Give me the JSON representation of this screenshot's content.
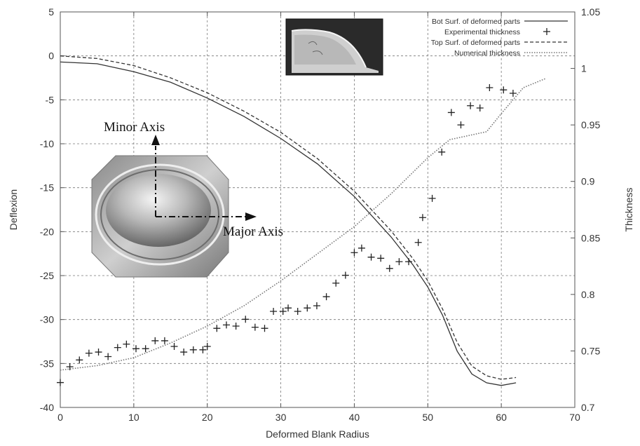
{
  "chart_data": {
    "type": "line",
    "xlabel": "Deformed Blank Radius",
    "ylabel": "Deflexion",
    "y2label": "Thickness",
    "xlim": [
      0,
      70
    ],
    "ylim": [
      -40,
      5
    ],
    "y2lim": [
      0.7,
      1.05
    ],
    "x_ticks": [
      "0",
      "10",
      "20",
      "30",
      "40",
      "50",
      "60",
      "70"
    ],
    "y_ticks": [
      "-40",
      "-35",
      "-30",
      "-25",
      "-20",
      "-15",
      "-10",
      "-5",
      "0",
      "5"
    ],
    "y2_ticks": [
      "0.7",
      "0.75",
      "0.8",
      "0.85",
      "0.9",
      "0.95",
      "1",
      "1.05"
    ],
    "grid": true,
    "legend_position": "top-right",
    "series": [
      {
        "name": "Bot Surf. of deformed parts",
        "axis": "left",
        "style": "solid",
        "color": "#333333",
        "x": [
          0,
          5,
          10,
          15,
          20,
          25,
          30,
          35,
          40,
          45,
          48,
          50,
          52,
          54,
          56,
          58,
          60,
          62
        ],
        "y": [
          -0.7,
          -0.9,
          -1.8,
          -3.0,
          -4.8,
          -6.9,
          -9.4,
          -12.3,
          -16.0,
          -20.6,
          -23.8,
          -26.3,
          -29.5,
          -33.6,
          -36.2,
          -37.2,
          -37.5,
          -37.2
        ]
      },
      {
        "name": "Experimental thickness",
        "axis": "right",
        "style": "marker",
        "marker": "+",
        "color": "#222222",
        "x": [
          0,
          1.3,
          2.6,
          3.9,
          5.2,
          6.5,
          7.8,
          9.0,
          10.3,
          11.6,
          12.9,
          14.2,
          15.5,
          16.8,
          18.1,
          19.4,
          20.0,
          21.3,
          22.6,
          23.9,
          25.2,
          26.5,
          27.8,
          29.0,
          30.3,
          31.0,
          32.3,
          33.6,
          34.9,
          36.2,
          37.5,
          38.8,
          40.0,
          41.0,
          42.3,
          43.6,
          44.8,
          46.1,
          47.4,
          48.7,
          49.3,
          50.6,
          51.9,
          53.2,
          54.5,
          55.8,
          57.1,
          58.4,
          60.3,
          61.6
        ],
        "y": [
          0.722,
          0.736,
          0.742,
          0.748,
          0.749,
          0.745,
          0.753,
          0.756,
          0.752,
          0.752,
          0.759,
          0.759,
          0.754,
          0.749,
          0.751,
          0.751,
          0.754,
          0.77,
          0.773,
          0.772,
          0.778,
          0.771,
          0.77,
          0.785,
          0.785,
          0.788,
          0.785,
          0.788,
          0.79,
          0.798,
          0.81,
          0.817,
          0.837,
          0.841,
          0.833,
          0.832,
          0.823,
          0.829,
          0.829,
          0.846,
          0.868,
          0.885,
          0.926,
          0.961,
          0.95,
          0.967,
          0.965,
          0.983,
          0.981,
          0.978
        ]
      },
      {
        "name": "Top Surf. of deformed parts",
        "axis": "left",
        "style": "dashed",
        "color": "#333333",
        "x": [
          0,
          5,
          10,
          15,
          20,
          25,
          30,
          35,
          40,
          45,
          48,
          50,
          52,
          54,
          56,
          58,
          60,
          62
        ],
        "y": [
          0.0,
          -0.3,
          -1.1,
          -2.5,
          -4.2,
          -6.3,
          -8.7,
          -11.7,
          -15.4,
          -19.9,
          -23.1,
          -25.6,
          -28.8,
          -32.6,
          -35.3,
          -36.4,
          -36.8,
          -36.6
        ]
      },
      {
        "name": "Numerical thickness",
        "axis": "right",
        "style": "dotted",
        "color": "#777777",
        "x": [
          0,
          5,
          10,
          15,
          20,
          25,
          30,
          35,
          40,
          45,
          50,
          53,
          58,
          60,
          63,
          66
        ],
        "y": [
          0.733,
          0.737,
          0.744,
          0.757,
          0.772,
          0.79,
          0.812,
          0.836,
          0.86,
          0.889,
          0.921,
          0.937,
          0.944,
          0.96,
          0.983,
          0.991
        ]
      }
    ],
    "annotations": [
      {
        "text": "Minor Axis"
      },
      {
        "text": "Major Axis"
      }
    ]
  }
}
